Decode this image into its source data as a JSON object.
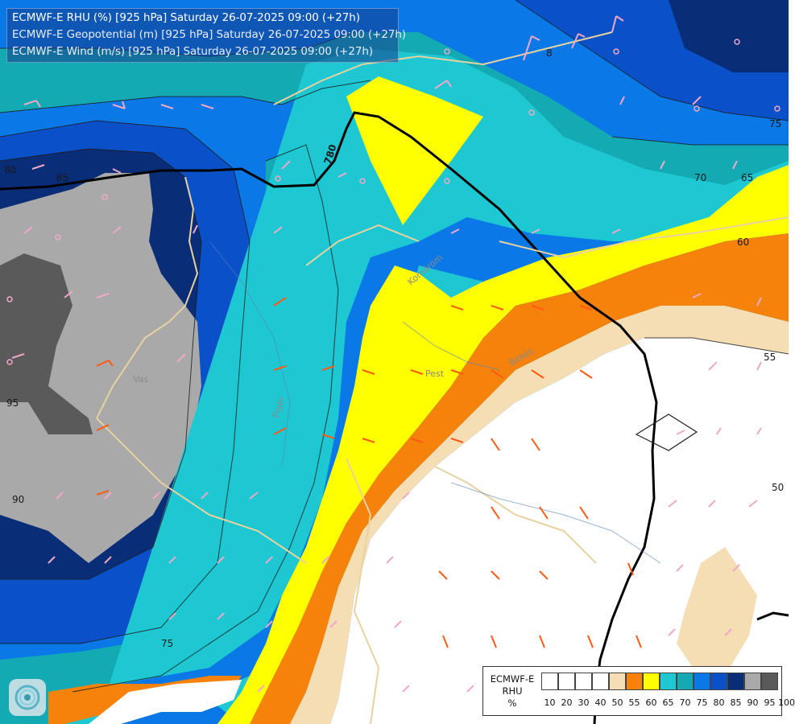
{
  "header": {
    "line1": "ECMWF-E RHU (%) [925 hPa] Saturday 26-07-2025 09:00 (+27h)",
    "line2": "ECMWF-E Geopotential (m) [925 hPa] Saturday 26-07-2025 09:00 (+27h)",
    "line3": "ECMWF-E Wind (m/s) [925 hPa] Saturday 26-07-2025 09:00 (+27h)"
  },
  "legend": {
    "title_line1": "ECMWF-E",
    "title_line2": "RHU",
    "title_line3": "%",
    "ticks": [
      "10",
      "20",
      "30",
      "40",
      "50",
      "55",
      "60",
      "65",
      "70",
      "75",
      "80",
      "85",
      "90",
      "95",
      "100"
    ],
    "colors": [
      "#ffffff",
      "#ffffff",
      "#ffffff",
      "#ffffff",
      "#f5deb3",
      "#f5820a",
      "#ffff00",
      "#1ec8d2",
      "#14aab4",
      "#0a78e6",
      "#0a50c8",
      "#0a2d78",
      "#a9a9a9",
      "#5a5a5a"
    ]
  },
  "contour_labels": {
    "geo_780": "780",
    "rh_80": "80",
    "rh_85": "85",
    "rh_95": "95",
    "rh_90": "90",
    "rh_75_bottom": "75",
    "rh_75_right": "75",
    "rh_70": "70",
    "rh_65": "65",
    "rh_60": "60",
    "rh_55": "55",
    "rh_50": "50",
    "rh_8": "8"
  },
  "places": {
    "pest": "Pest",
    "vas": "Vas",
    "kom": "Komárom",
    "bekes": "Békés",
    "fejer": "Fejér"
  },
  "icons": {
    "logo": "ecmwf-swirl-icon"
  }
}
